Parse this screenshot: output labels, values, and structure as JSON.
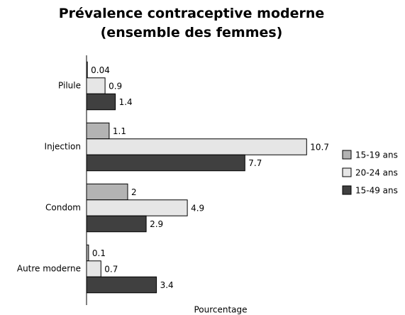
{
  "chart_data": {
    "type": "barh",
    "title": "Prévalence contraceptive moderne\n(ensemble des femmes)",
    "x_label": "Pourcentage",
    "categories": [
      "Pilule",
      "Injection",
      "Condom",
      "Autre moderne"
    ],
    "series": [
      {
        "name": "15-19 ans",
        "color": "#b3b3b3",
        "values": [
          0.04,
          1.1,
          2,
          0.1
        ]
      },
      {
        "name": "20-24 ans",
        "color": "#e6e6e6",
        "values": [
          0.9,
          10.7,
          4.9,
          0.7
        ]
      },
      {
        "name": "15-49 ans",
        "color": "#404040",
        "values": [
          1.4,
          7.7,
          2.9,
          3.4
        ]
      }
    ],
    "xlim": [
      0,
      11
    ],
    "legend": "right"
  }
}
